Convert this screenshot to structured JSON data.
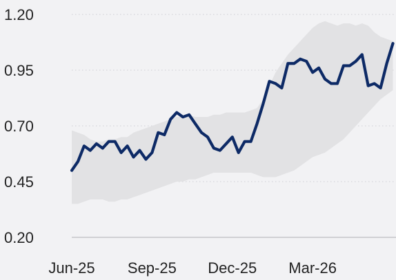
{
  "chart_data": {
    "type": "line",
    "title": "",
    "xlabel": "",
    "ylabel": "",
    "ylim": [
      0.2,
      1.2
    ],
    "yticks": [
      0.2,
      0.45,
      0.7,
      0.95,
      1.2
    ],
    "ytick_labels": [
      "0.20",
      "0.45",
      "0.70",
      "0.95",
      "1.20"
    ],
    "xtick_labels": [
      "Jun-25",
      "Sep-25",
      "Dec-25",
      "Mar-26"
    ],
    "xtick_positions": [
      0,
      13,
      26,
      39
    ],
    "x_range": [
      0,
      52.5
    ],
    "grid": true,
    "legend": "none",
    "colors": {
      "line": "#0d2a66",
      "band": "#e2e2e4",
      "background": "#f2f2f4"
    },
    "series": [
      {
        "values": [
          0.5,
          0.54,
          0.61,
          0.59,
          0.62,
          0.6,
          0.63,
          0.63,
          0.58,
          0.61,
          0.56,
          0.59,
          0.55,
          0.58,
          0.67,
          0.66,
          0.73,
          0.76,
          0.74,
          0.75,
          0.71,
          0.67,
          0.65,
          0.6,
          0.59,
          0.62,
          0.65,
          0.58,
          0.63,
          0.63,
          0.71,
          0.8,
          0.9,
          0.89,
          0.87,
          0.98,
          0.98,
          1.0,
          0.99,
          0.94,
          0.96,
          0.91,
          0.89,
          0.89,
          0.97,
          0.97,
          0.99,
          1.02,
          0.88,
          0.89,
          0.87,
          0.98,
          1.07
        ]
      }
    ],
    "band": {
      "lower": [
        0.35,
        0.35,
        0.36,
        0.37,
        0.37,
        0.37,
        0.36,
        0.36,
        0.37,
        0.37,
        0.38,
        0.39,
        0.4,
        0.41,
        0.42,
        0.43,
        0.44,
        0.45,
        0.45,
        0.46,
        0.46,
        0.47,
        0.48,
        0.49,
        0.49,
        0.49,
        0.49,
        0.49,
        0.49,
        0.49,
        0.48,
        0.47,
        0.47,
        0.47,
        0.48,
        0.49,
        0.5,
        0.52,
        0.54,
        0.56,
        0.57,
        0.58,
        0.6,
        0.62,
        0.64,
        0.67,
        0.7,
        0.73,
        0.76,
        0.79,
        0.82,
        0.84,
        0.86
      ],
      "upper": [
        0.68,
        0.67,
        0.66,
        0.64,
        0.63,
        0.63,
        0.64,
        0.64,
        0.65,
        0.65,
        0.67,
        0.68,
        0.69,
        0.7,
        0.71,
        0.72,
        0.73,
        0.74,
        0.74,
        0.75,
        0.74,
        0.74,
        0.74,
        0.75,
        0.75,
        0.76,
        0.76,
        0.76,
        0.76,
        0.77,
        0.78,
        0.82,
        0.88,
        0.94,
        0.98,
        1.02,
        1.05,
        1.08,
        1.11,
        1.14,
        1.16,
        1.17,
        1.16,
        1.15,
        1.16,
        1.16,
        1.15,
        1.16,
        1.15,
        1.12,
        1.1,
        1.09,
        1.08
      ]
    }
  }
}
